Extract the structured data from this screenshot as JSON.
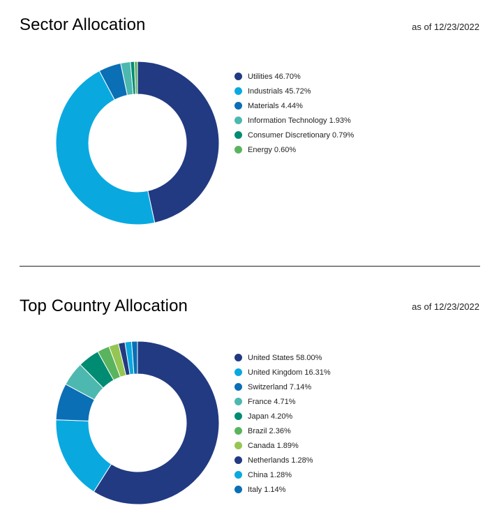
{
  "sector": {
    "title": "Sector Allocation",
    "as_of": "as of 12/23/2022"
  },
  "country": {
    "title": "Top Country Allocation",
    "as_of": "as of 12/23/2022"
  },
  "chart_data": [
    {
      "type": "pie",
      "donut": true,
      "title": "Sector Allocation",
      "start": "top, clockwise",
      "slices": [
        {
          "label": "Utilities 46.70%",
          "value": 46.7,
          "color": "#213a82"
        },
        {
          "label": "Industrials 45.72%",
          "value": 45.72,
          "color": "#09a9e0"
        },
        {
          "label": "Materials 4.44%",
          "value": 4.44,
          "color": "#0a6fb5"
        },
        {
          "label": "Information Technology 1.93%",
          "value": 1.93,
          "color": "#4db8b0"
        },
        {
          "label": "Consumer Discretionary 0.79%",
          "value": 0.79,
          "color": "#008c73"
        },
        {
          "label": "Energy 0.60%",
          "value": 0.6,
          "color": "#5ab45e"
        }
      ]
    },
    {
      "type": "pie",
      "donut": true,
      "title": "Top Country Allocation",
      "start": "top, clockwise",
      "slices": [
        {
          "label": "United States 58.00%",
          "value": 58.0,
          "color": "#213a82"
        },
        {
          "label": "United Kingdom 16.31%",
          "value": 16.31,
          "color": "#09a9e0"
        },
        {
          "label": "Switzerland 7.14%",
          "value": 7.14,
          "color": "#0a6fb5"
        },
        {
          "label": "France 4.71%",
          "value": 4.71,
          "color": "#4db8b0"
        },
        {
          "label": "Japan 4.20%",
          "value": 4.2,
          "color": "#008c73"
        },
        {
          "label": "Brazil 2.36%",
          "value": 2.36,
          "color": "#5ab45e"
        },
        {
          "label": "Canada 1.89%",
          "value": 1.89,
          "color": "#95c653"
        },
        {
          "label": "Netherlands 1.28%",
          "value": 1.28,
          "color": "#213a82"
        },
        {
          "label": "China 1.28%",
          "value": 1.28,
          "color": "#09a9e0"
        },
        {
          "label": "Italy 1.14%",
          "value": 1.14,
          "color": "#0a6fb5"
        }
      ]
    }
  ]
}
